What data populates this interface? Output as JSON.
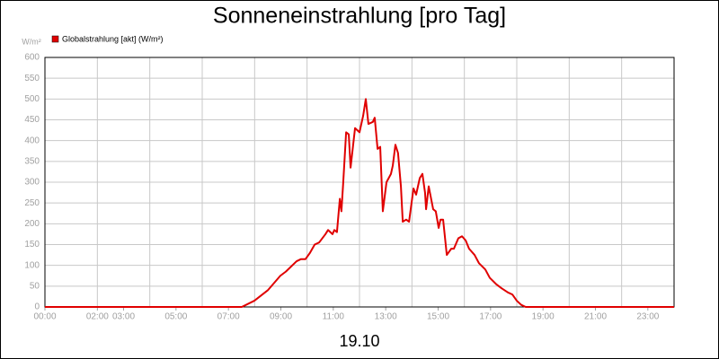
{
  "chart_data": {
    "type": "line",
    "title": "Sonneneinstrahlung [pro Tag]",
    "ylabel": "W/m²",
    "xlabel": "19.10",
    "x": [
      0,
      7.51,
      7.99,
      8.5,
      8.98,
      9.19,
      9.6,
      9.77,
      9.94,
      10.11,
      10.29,
      10.46,
      10.7,
      10.8,
      10.97,
      11.04,
      11.14,
      11.25,
      11.31,
      11.38,
      11.49,
      11.59,
      11.66,
      11.83,
      12.0,
      12.14,
      12.24,
      12.34,
      12.51,
      12.58,
      12.69,
      12.79,
      12.89,
      13.03,
      13.2,
      13.27,
      13.37,
      13.47,
      13.58,
      13.65,
      13.78,
      13.89,
      14.06,
      14.16,
      14.3,
      14.4,
      14.5,
      14.54,
      14.64,
      14.81,
      14.91,
      15.02,
      15.09,
      15.19,
      15.33,
      15.5,
      15.6,
      15.77,
      15.91,
      16.05,
      16.18,
      16.39,
      16.56,
      16.8,
      16.97,
      17.21,
      17.42,
      17.66,
      17.83,
      18.0,
      18.17,
      18.34,
      24
    ],
    "series": [
      {
        "name": "Globalstrahlung [akt] (W/m²)",
        "color": "#e00000",
        "values": [
          0,
          0,
          15,
          40,
          75,
          85,
          110,
          115,
          115,
          130,
          150,
          155,
          175,
          185,
          175,
          185,
          180,
          260,
          230,
          300,
          420,
          415,
          335,
          430,
          420,
          460,
          500,
          440,
          445,
          455,
          380,
          385,
          230,
          300,
          320,
          340,
          390,
          370,
          290,
          205,
          210,
          205,
          285,
          270,
          310,
          320,
          275,
          235,
          290,
          235,
          230,
          190,
          210,
          210,
          125,
          140,
          140,
          165,
          170,
          160,
          140,
          125,
          105,
          90,
          70,
          55,
          45,
          35,
          30,
          15,
          5,
          0,
          0
        ]
      }
    ],
    "xlim": [
      0,
      24
    ],
    "xticks": [
      {
        "value": 0,
        "label": "00:00"
      },
      {
        "value": 2,
        "label": "02:00"
      },
      {
        "value": 3,
        "label": "03:00"
      },
      {
        "value": 5,
        "label": "05:00"
      },
      {
        "value": 7,
        "label": "07:00"
      },
      {
        "value": 9,
        "label": "09:00"
      },
      {
        "value": 11,
        "label": "11:00"
      },
      {
        "value": 13,
        "label": "13:00"
      },
      {
        "value": 15,
        "label": "15:00"
      },
      {
        "value": 17,
        "label": "17:00"
      },
      {
        "value": 19,
        "label": "19:00"
      },
      {
        "value": 21,
        "label": "21:00"
      },
      {
        "value": 23,
        "label": "23:00"
      }
    ],
    "xgrid": [
      2,
      4,
      6,
      8,
      10,
      12,
      14,
      16,
      18,
      20,
      22
    ],
    "ylim": [
      0,
      600
    ],
    "yticks": [
      0,
      50,
      100,
      150,
      200,
      250,
      300,
      350,
      400,
      450,
      500,
      550,
      600
    ],
    "grid": true
  }
}
